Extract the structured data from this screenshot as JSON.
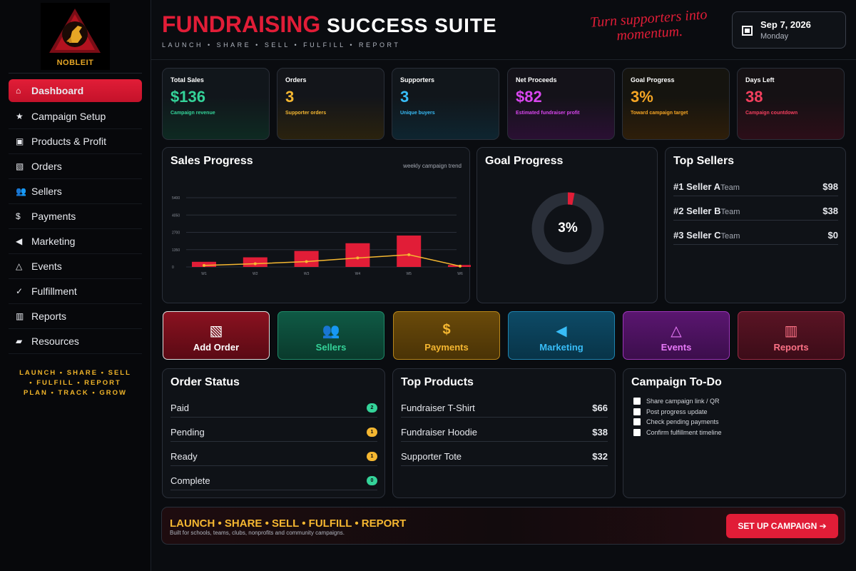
{
  "brand": {
    "logo_text": "NOBLEIT"
  },
  "sidebar": {
    "items": [
      {
        "icon": "⌂",
        "label": "Dashboard"
      },
      {
        "icon": "★",
        "label": "Campaign Setup"
      },
      {
        "icon": "▣",
        "label": "Products & Profit"
      },
      {
        "icon": "▧",
        "label": "Orders"
      },
      {
        "icon": "👥",
        "label": "Sellers"
      },
      {
        "icon": "$",
        "label": "Payments"
      },
      {
        "icon": "◀",
        "label": "Marketing"
      },
      {
        "icon": "△",
        "label": "Events"
      },
      {
        "icon": "✓",
        "label": "Fulfillment"
      },
      {
        "icon": "▥",
        "label": "Reports"
      },
      {
        "icon": "▰",
        "label": "Resources"
      }
    ],
    "tags": [
      "LAUNCH • SHARE • SELL",
      "• FULFILL • REPORT",
      "PLAN • TRACK • GROW"
    ]
  },
  "header": {
    "title_red": "FUNDRAISING",
    "title_white": "SUCCESS SUITE",
    "subtitle": "LAUNCH • SHARE • SELL • FULFILL • REPORT",
    "tagline_line1": "Turn supporters into",
    "tagline_line2": "momentum.",
    "date": "Sep 7, 2026",
    "weekday": "Monday"
  },
  "stats": [
    {
      "label": "Total Sales",
      "value": "$136",
      "caption": "Campaign revenue",
      "color": "#34d399"
    },
    {
      "label": "Orders",
      "value": "3",
      "caption": "Supporter orders",
      "color": "#f5b731"
    },
    {
      "label": "Supporters",
      "value": "3",
      "caption": "Unique buyers",
      "color": "#38bdf8"
    },
    {
      "label": "Net Proceeds",
      "value": "$82",
      "caption": "Estimated fundraiser profit",
      "color": "#d946ef"
    },
    {
      "label": "Goal Progress",
      "value": "3%",
      "caption": "Toward campaign target",
      "color": "#f5a524"
    },
    {
      "label": "Days Left",
      "value": "38",
      "caption": "Campaign countdown",
      "color": "#f43f5e"
    }
  ],
  "sales_panel": {
    "title": "Sales Progress",
    "note": "weekly campaign trend"
  },
  "chart_data": {
    "type": "bar",
    "categories": [
      "W1",
      "W2",
      "W3",
      "W4",
      "W5",
      "W6"
    ],
    "series": [
      {
        "type": "bar",
        "values": [
          400,
          750,
          1250,
          1850,
          2450,
          150
        ]
      },
      {
        "type": "line",
        "values": [
          120,
          250,
          420,
          700,
          950,
          60
        ]
      }
    ],
    "yticks": [
      0,
      1350,
      2700,
      4050,
      5400
    ],
    "ylim": [
      0,
      5400
    ],
    "grid": true
  },
  "goal_panel": {
    "title": "Goal Progress",
    "percent_label": "3%",
    "fraction": 0.03
  },
  "top_sellers": {
    "title": "Top Sellers",
    "rows": [
      {
        "name": "#1 Seller A",
        "team": "Team",
        "amount": "$98"
      },
      {
        "name": "#2 Seller B",
        "team": "Team",
        "amount": "$38"
      },
      {
        "name": "#3 Seller C",
        "team": "Team",
        "amount": "$0"
      }
    ]
  },
  "tiles": [
    {
      "icon": "▧",
      "label": "Add Order"
    },
    {
      "icon": "👥",
      "label": "Sellers"
    },
    {
      "icon": "$",
      "label": "Payments"
    },
    {
      "icon": "◀",
      "label": "Marketing"
    },
    {
      "icon": "△",
      "label": "Events"
    },
    {
      "icon": "▥",
      "label": "Reports"
    }
  ],
  "order_status": {
    "title": "Order Status",
    "rows": [
      {
        "label": "Paid",
        "count": "2",
        "color": "#34d399"
      },
      {
        "label": "Pending",
        "count": "1",
        "color": "#f5b731"
      },
      {
        "label": "Ready",
        "count": "1",
        "color": "#f5b731"
      },
      {
        "label": "Complete",
        "count": "0",
        "color": "#34d399"
      }
    ]
  },
  "top_products": {
    "title": "Top Products",
    "rows": [
      {
        "label": "Fundraiser T-Shirt",
        "amount": "$66"
      },
      {
        "label": "Fundraiser Hoodie",
        "amount": "$38"
      },
      {
        "label": "Supporter Tote",
        "amount": "$32"
      }
    ]
  },
  "todo": {
    "title": "Campaign To-Do",
    "items": [
      "Share campaign link / QR",
      "Post progress update",
      "Check pending payments",
      "Confirm fulfillment timeline"
    ]
  },
  "bottom": {
    "headline": "LAUNCH • SHARE • SELL • FULFILL • REPORT",
    "sub": "Built for schools, teams, clubs, nonprofits and community campaigns.",
    "cta": "SET UP CAMPAIGN ➔"
  }
}
